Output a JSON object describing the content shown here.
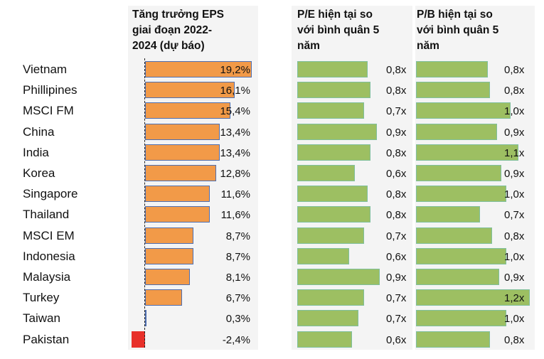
{
  "headers": {
    "eps": [
      "Tăng trưởng EPS",
      "giai đoạn 2022-",
      "2024 (dự báo)"
    ],
    "pe": [
      "P/E hiện tại so",
      "với bình quân 5",
      "năm"
    ],
    "pb": [
      "P/B hiện tại so",
      "với bình quân 5",
      "năm"
    ]
  },
  "chart_data": {
    "type": "bar",
    "categories": [
      "Vietnam",
      "Phillipines",
      "MSCI FM",
      "China",
      "India",
      "Korea",
      "Singapore",
      "Thailand",
      "MSCI EM",
      "Indonesia",
      "Malaysia",
      "Turkey",
      "Taiwan",
      "Pakistan"
    ],
    "series": [
      {
        "name": "Tăng trưởng EPS giai đoạn 2022-2024 (dự báo)",
        "values": [
          19.2,
          16.1,
          15.4,
          13.4,
          13.4,
          12.8,
          11.6,
          11.6,
          8.7,
          8.7,
          8.1,
          6.7,
          0.3,
          -2.4
        ],
        "labels": [
          "19,2%",
          "16,1%",
          "15,4%",
          "13,4%",
          "13,4%",
          "12,8%",
          "11,6%",
          "11,6%",
          "8,7%",
          "8,7%",
          "8,1%",
          "6,7%",
          "0,3%",
          "-2,4%"
        ],
        "color": "#f29a48"
      },
      {
        "name": "P/E hiện tại so với bình quân 5 năm",
        "values": [
          0.8,
          0.8,
          0.7,
          0.9,
          0.8,
          0.6,
          0.8,
          0.8,
          0.7,
          0.6,
          0.9,
          0.7,
          0.7,
          0.6
        ],
        "labels": [
          "0,8x",
          "0,8x",
          "0,7x",
          "0,9x",
          "0,8x",
          "0,6x",
          "0,8x",
          "0,8x",
          "0,7x",
          "0,6x",
          "0,9x",
          "0,7x",
          "0,7x",
          "0,6x"
        ],
        "color": "#9dbf62"
      },
      {
        "name": "P/B hiện tại so với bình quân 5 năm",
        "values": [
          0.8,
          0.8,
          1.0,
          0.9,
          1.1,
          0.9,
          1.0,
          0.7,
          0.8,
          1.0,
          0.9,
          1.2,
          1.0,
          0.8
        ],
        "labels": [
          "0,8x",
          "0,8x",
          "1,0x",
          "0,9x",
          "1,1x",
          "0,9x",
          "1,0x",
          "0,7x",
          "0,8x",
          "1,0x",
          "0,9x",
          "1,2x",
          "1,0x",
          "0,8x"
        ],
        "color": "#9dbf62"
      }
    ],
    "negative_color": "#e8302a"
  }
}
